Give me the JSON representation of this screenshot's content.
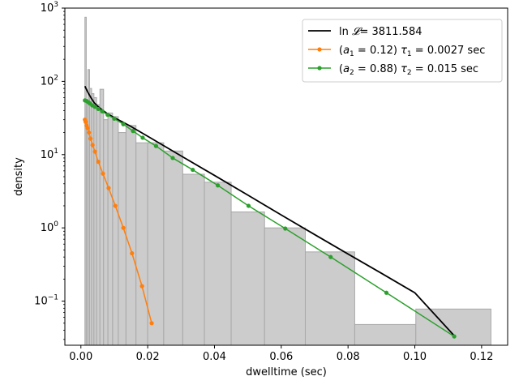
{
  "chart_data": {
    "type": "histogram",
    "xlabel": "dwelltime (sec)",
    "ylabel": "density",
    "xlim": [
      -0.0048,
      0.1278
    ],
    "ylim": [
      0.025,
      1000
    ],
    "yscale": "log",
    "grid": false,
    "legend_position": "top-right",
    "x_ticks": [
      {
        "value": 0.0,
        "label": "0.00"
      },
      {
        "value": 0.02,
        "label": "0.02"
      },
      {
        "value": 0.04,
        "label": "0.04"
      },
      {
        "value": 0.06,
        "label": "0.06"
      },
      {
        "value": 0.08,
        "label": "0.08"
      },
      {
        "value": 0.1,
        "label": "0.10"
      },
      {
        "value": 0.12,
        "label": "0.12"
      }
    ],
    "y_ticks": [
      {
        "value": 0.1,
        "base": "10",
        "exp": "−1"
      },
      {
        "value": 1,
        "base": "10",
        "exp": "0"
      },
      {
        "value": 10,
        "base": "10",
        "exp": "1"
      },
      {
        "value": 100,
        "base": "10",
        "exp": "2"
      },
      {
        "value": 1000,
        "base": "10",
        "exp": "3"
      }
    ],
    "histogram": {
      "color": "#cccccc",
      "edge_color": "#a8a8a8",
      "bins": [
        {
          "x0": 0.0012,
          "x1": 0.0016,
          "density": 750
        },
        {
          "x0": 0.0016,
          "x1": 0.0021,
          "density": 52
        },
        {
          "x0": 0.0021,
          "x1": 0.0026,
          "density": 145
        },
        {
          "x0": 0.0026,
          "x1": 0.0032,
          "density": 80
        },
        {
          "x0": 0.0032,
          "x1": 0.0039,
          "density": 68
        },
        {
          "x0": 0.0039,
          "x1": 0.0047,
          "density": 60
        },
        {
          "x0": 0.0047,
          "x1": 0.0057,
          "density": 48
        },
        {
          "x0": 0.0057,
          "x1": 0.0068,
          "density": 78
        },
        {
          "x0": 0.0068,
          "x1": 0.0081,
          "density": 30
        },
        {
          "x0": 0.0081,
          "x1": 0.0095,
          "density": 37
        },
        {
          "x0": 0.0095,
          "x1": 0.0112,
          "density": 33
        },
        {
          "x0": 0.0112,
          "x1": 0.0135,
          "density": 20
        },
        {
          "x0": 0.0135,
          "x1": 0.0165,
          "density": 25
        },
        {
          "x0": 0.0165,
          "x1": 0.02,
          "density": 14.5
        },
        {
          "x0": 0.02,
          "x1": 0.0248,
          "density": 14.5
        },
        {
          "x0": 0.0248,
          "x1": 0.0305,
          "density": 11.2
        },
        {
          "x0": 0.0305,
          "x1": 0.037,
          "density": 5.4
        },
        {
          "x0": 0.037,
          "x1": 0.045,
          "density": 4.2
        },
        {
          "x0": 0.045,
          "x1": 0.055,
          "density": 1.65
        },
        {
          "x0": 0.055,
          "x1": 0.0672,
          "density": 1.0
        },
        {
          "x0": 0.0672,
          "x1": 0.082,
          "density": 0.47
        },
        {
          "x0": 0.082,
          "x1": 0.1003,
          "density": 0.048
        },
        {
          "x0": 0.1003,
          "x1": 0.1228,
          "density": 0.078
        }
      ]
    },
    "series": [
      {
        "name": "ln 𝓛 = 3811.584",
        "label_parts": {
          "pre": "ln",
          "script": "𝓛",
          "post": "= 3811.584"
        },
        "color": "#000000",
        "marker": "none",
        "x": [
          0.0012,
          0.002,
          0.003,
          0.004,
          0.005,
          0.006,
          0.008,
          0.01,
          0.015,
          0.02,
          0.03,
          0.04,
          0.05,
          0.06,
          0.07,
          0.08,
          0.09,
          0.1,
          0.112
        ],
        "y": [
          86,
          72,
          60,
          51,
          46,
          42,
          36,
          32,
          24.2,
          17.8,
          9.6,
          5.2,
          2.8,
          1.5,
          0.81,
          0.44,
          0.24,
          0.13,
          0.033
        ]
      },
      {
        "name": "(a1 = 0.12) τ1 = 0.0027 sec",
        "label_parts": {
          "pre": "(",
          "var": "a",
          "sub": "1",
          "mid": " = 0.12) ",
          "greek": "τ",
          "sub2": "1",
          "post": " = 0.0027 sec"
        },
        "color": "#ff7f0e",
        "marker": "circle",
        "x": [
          0.0012,
          0.0014,
          0.0017,
          0.002,
          0.0024,
          0.0029,
          0.0035,
          0.0042,
          0.0052,
          0.0066,
          0.0083,
          0.0103,
          0.0127,
          0.0153,
          0.0183,
          0.0212
        ],
        "y": [
          30,
          28,
          25,
          23,
          20,
          16.5,
          13.5,
          11,
          8.0,
          5.5,
          3.5,
          2.0,
          1.0,
          0.45,
          0.16,
          0.05
        ]
      },
      {
        "name": "(a2 = 0.88) τ2 = 0.015 sec",
        "label_parts": {
          "pre": "(",
          "var": "a",
          "sub": "2",
          "mid": " = 0.88) ",
          "greek": "τ",
          "sub2": "2",
          "post": " = 0.015 sec"
        },
        "color": "#2ca02c",
        "marker": "circle",
        "x": [
          0.0012,
          0.0017,
          0.0022,
          0.0027,
          0.0034,
          0.0042,
          0.0052,
          0.0064,
          0.008,
          0.01,
          0.0127,
          0.0156,
          0.0185,
          0.0225,
          0.0275,
          0.0335,
          0.041,
          0.0502,
          0.0612,
          0.0748,
          0.0915,
          0.1118
        ],
        "y": [
          55,
          54,
          52,
          50,
          47,
          45,
          42,
          39,
          35,
          31,
          26,
          21,
          17,
          13.1,
          9.0,
          6.2,
          3.8,
          2.0,
          0.98,
          0.4,
          0.13,
          0.033
        ]
      }
    ]
  }
}
